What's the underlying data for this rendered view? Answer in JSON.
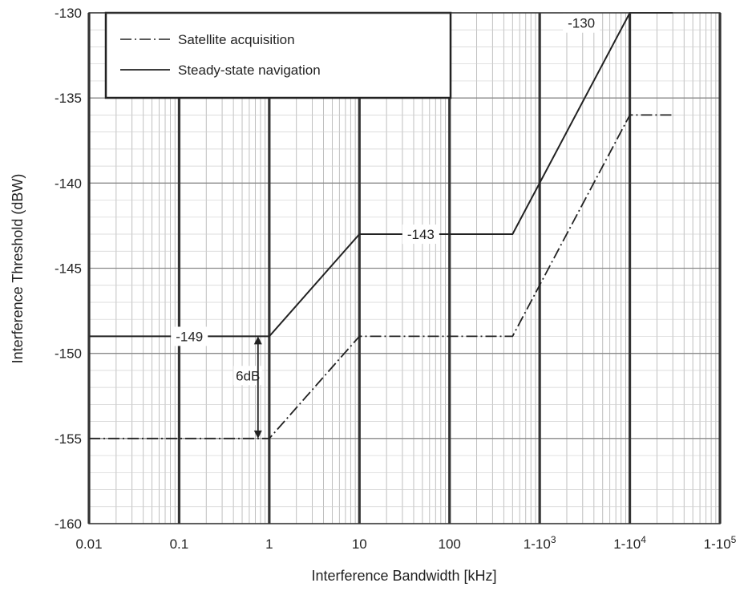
{
  "chart_data": {
    "type": "line",
    "xscale": "log",
    "xlim": [
      0.01,
      100000
    ],
    "ylim": [
      -160,
      -130
    ],
    "grid": true,
    "legend_position": "top-left",
    "xlabel": "Interference Bandwidth [kHz]",
    "ylabel": "Interference Threshold (dBW)",
    "x_ticks": [
      {
        "value": 0.01,
        "label": "0.01"
      },
      {
        "value": 0.1,
        "label": "0.1"
      },
      {
        "value": 1,
        "label": "1"
      },
      {
        "value": 10,
        "label": "10"
      },
      {
        "value": 100,
        "label": "100"
      },
      {
        "value": 1000,
        "label": "1-10",
        "sup": "3"
      },
      {
        "value": 10000,
        "label": "1-10",
        "sup": "4"
      },
      {
        "value": 100000,
        "label": "1-10",
        "sup": "5"
      }
    ],
    "y_ticks": [
      {
        "value": -130,
        "label": "-130"
      },
      {
        "value": -135,
        "label": "-135"
      },
      {
        "value": -140,
        "label": "-140"
      },
      {
        "value": -145,
        "label": "-145"
      },
      {
        "value": -150,
        "label": "-150"
      },
      {
        "value": -155,
        "label": "-155"
      },
      {
        "value": -160,
        "label": "-160"
      }
    ],
    "series": [
      {
        "name": "Satellite acquisition",
        "style": "dash-dot",
        "color": "#222222",
        "points": [
          [
            0.01,
            -155
          ],
          [
            1,
            -155
          ],
          [
            10,
            -149
          ],
          [
            500,
            -149
          ],
          [
            10000,
            -136
          ],
          [
            30000,
            -136
          ]
        ]
      },
      {
        "name": "Steady-state navigation",
        "style": "solid",
        "color": "#222222",
        "points": [
          [
            0.01,
            -149
          ],
          [
            1,
            -149
          ],
          [
            10,
            -143
          ],
          [
            500,
            -143
          ],
          [
            10000,
            -130
          ],
          [
            30000,
            -130
          ]
        ]
      }
    ],
    "annotations": [
      {
        "text": "-149",
        "x": 0.13,
        "y": -149
      },
      {
        "text": "-143",
        "x": 48,
        "y": -143
      },
      {
        "text": "-130",
        "x": 2900,
        "y": -130.6
      },
      {
        "text": "6dB",
        "x": 0.58,
        "y": -151.3
      }
    ],
    "arrow_6db": {
      "x": 0.75,
      "y_from": -149,
      "y_to": -155
    }
  }
}
